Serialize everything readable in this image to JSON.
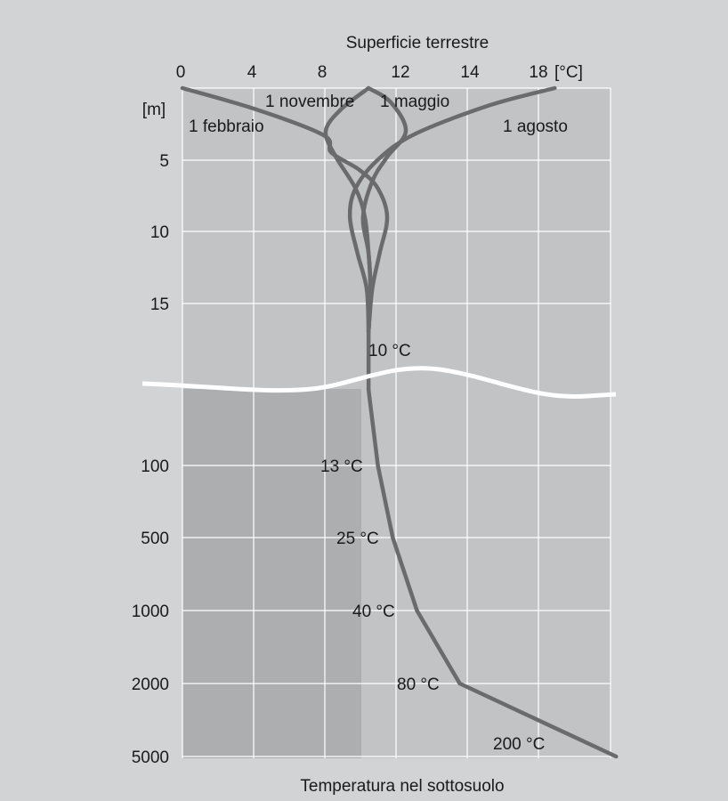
{
  "colors": {
    "background": "#d2d3d4",
    "plot_upper": "#c2c3c5",
    "plot_lower_left": "#adaeb0",
    "plot_lower_right": "#c2c3c5",
    "grid": "#ffffff",
    "curve": "#6b6b6d",
    "break_line": "#ffffff",
    "text": "#1a1a1a"
  },
  "chart_data": {
    "type": "line",
    "title": "Superficie terrestre",
    "xlabel": "Temperatura nel sottosuolo",
    "ylabel": "[m]",
    "x_unit": "[°C]",
    "x_ticks": [
      "0",
      "4",
      "8",
      "12",
      "14",
      "18"
    ],
    "xlim": [
      0,
      23
    ],
    "grid": true,
    "upper_panel": {
      "ylim": [
        0,
        17
      ],
      "y_ticks": [
        "5",
        "10",
        "15"
      ],
      "series": [
        {
          "name": "1 febbraio",
          "points": [
            [
              0,
              0
            ],
            [
              4,
              1.5
            ],
            [
              7.6,
              3.3
            ],
            [
              8,
              4.5
            ],
            [
              9.5,
              5.7
            ],
            [
              10.5,
              7
            ],
            [
              11,
              9
            ],
            [
              10.6,
              11.5
            ],
            [
              10.2,
              14
            ],
            [
              10,
              17
            ]
          ]
        },
        {
          "name": "1 novembre",
          "points": [
            [
              10,
              0
            ],
            [
              8.5,
              1.5
            ],
            [
              7.7,
              3
            ],
            [
              8.2,
              4.7
            ],
            [
              9.3,
              7
            ],
            [
              9.8,
              9
            ],
            [
              10,
              11.5
            ],
            [
              10.1,
              14
            ],
            [
              10,
              17
            ]
          ]
        },
        {
          "name": "1 maggio",
          "points": [
            [
              10,
              0
            ],
            [
              11.2,
              1
            ],
            [
              12,
              3
            ],
            [
              11,
              4.8
            ],
            [
              10.2,
              6.5
            ],
            [
              9.7,
              9
            ],
            [
              10,
              11.5
            ],
            [
              10.1,
              14
            ],
            [
              10,
              17
            ]
          ]
        },
        {
          "name": "1 agosto",
          "points": [
            [
              20,
              0
            ],
            [
              16.5,
              1.2
            ],
            [
              12.5,
              3.2
            ],
            [
              10.5,
              5
            ],
            [
              9.3,
              7
            ],
            [
              9,
              9
            ],
            [
              9.4,
              11.5
            ],
            [
              9.9,
              14
            ],
            [
              10,
              17
            ]
          ]
        }
      ]
    },
    "lower_panel": {
      "y_ticks": [
        "100",
        "500",
        "1000",
        "2000",
        "5000"
      ],
      "points": [
        [
          10,
          50
        ],
        [
          10.5,
          100
        ],
        [
          11.3,
          500
        ],
        [
          12.6,
          1000
        ],
        [
          14.9,
          2000
        ],
        [
          23.3,
          5000
        ]
      ],
      "annotations": [
        "13 °C",
        "25 °C",
        "40 °C",
        "80 °C",
        "200 °C"
      ]
    },
    "break_annotation": "10 °C"
  }
}
